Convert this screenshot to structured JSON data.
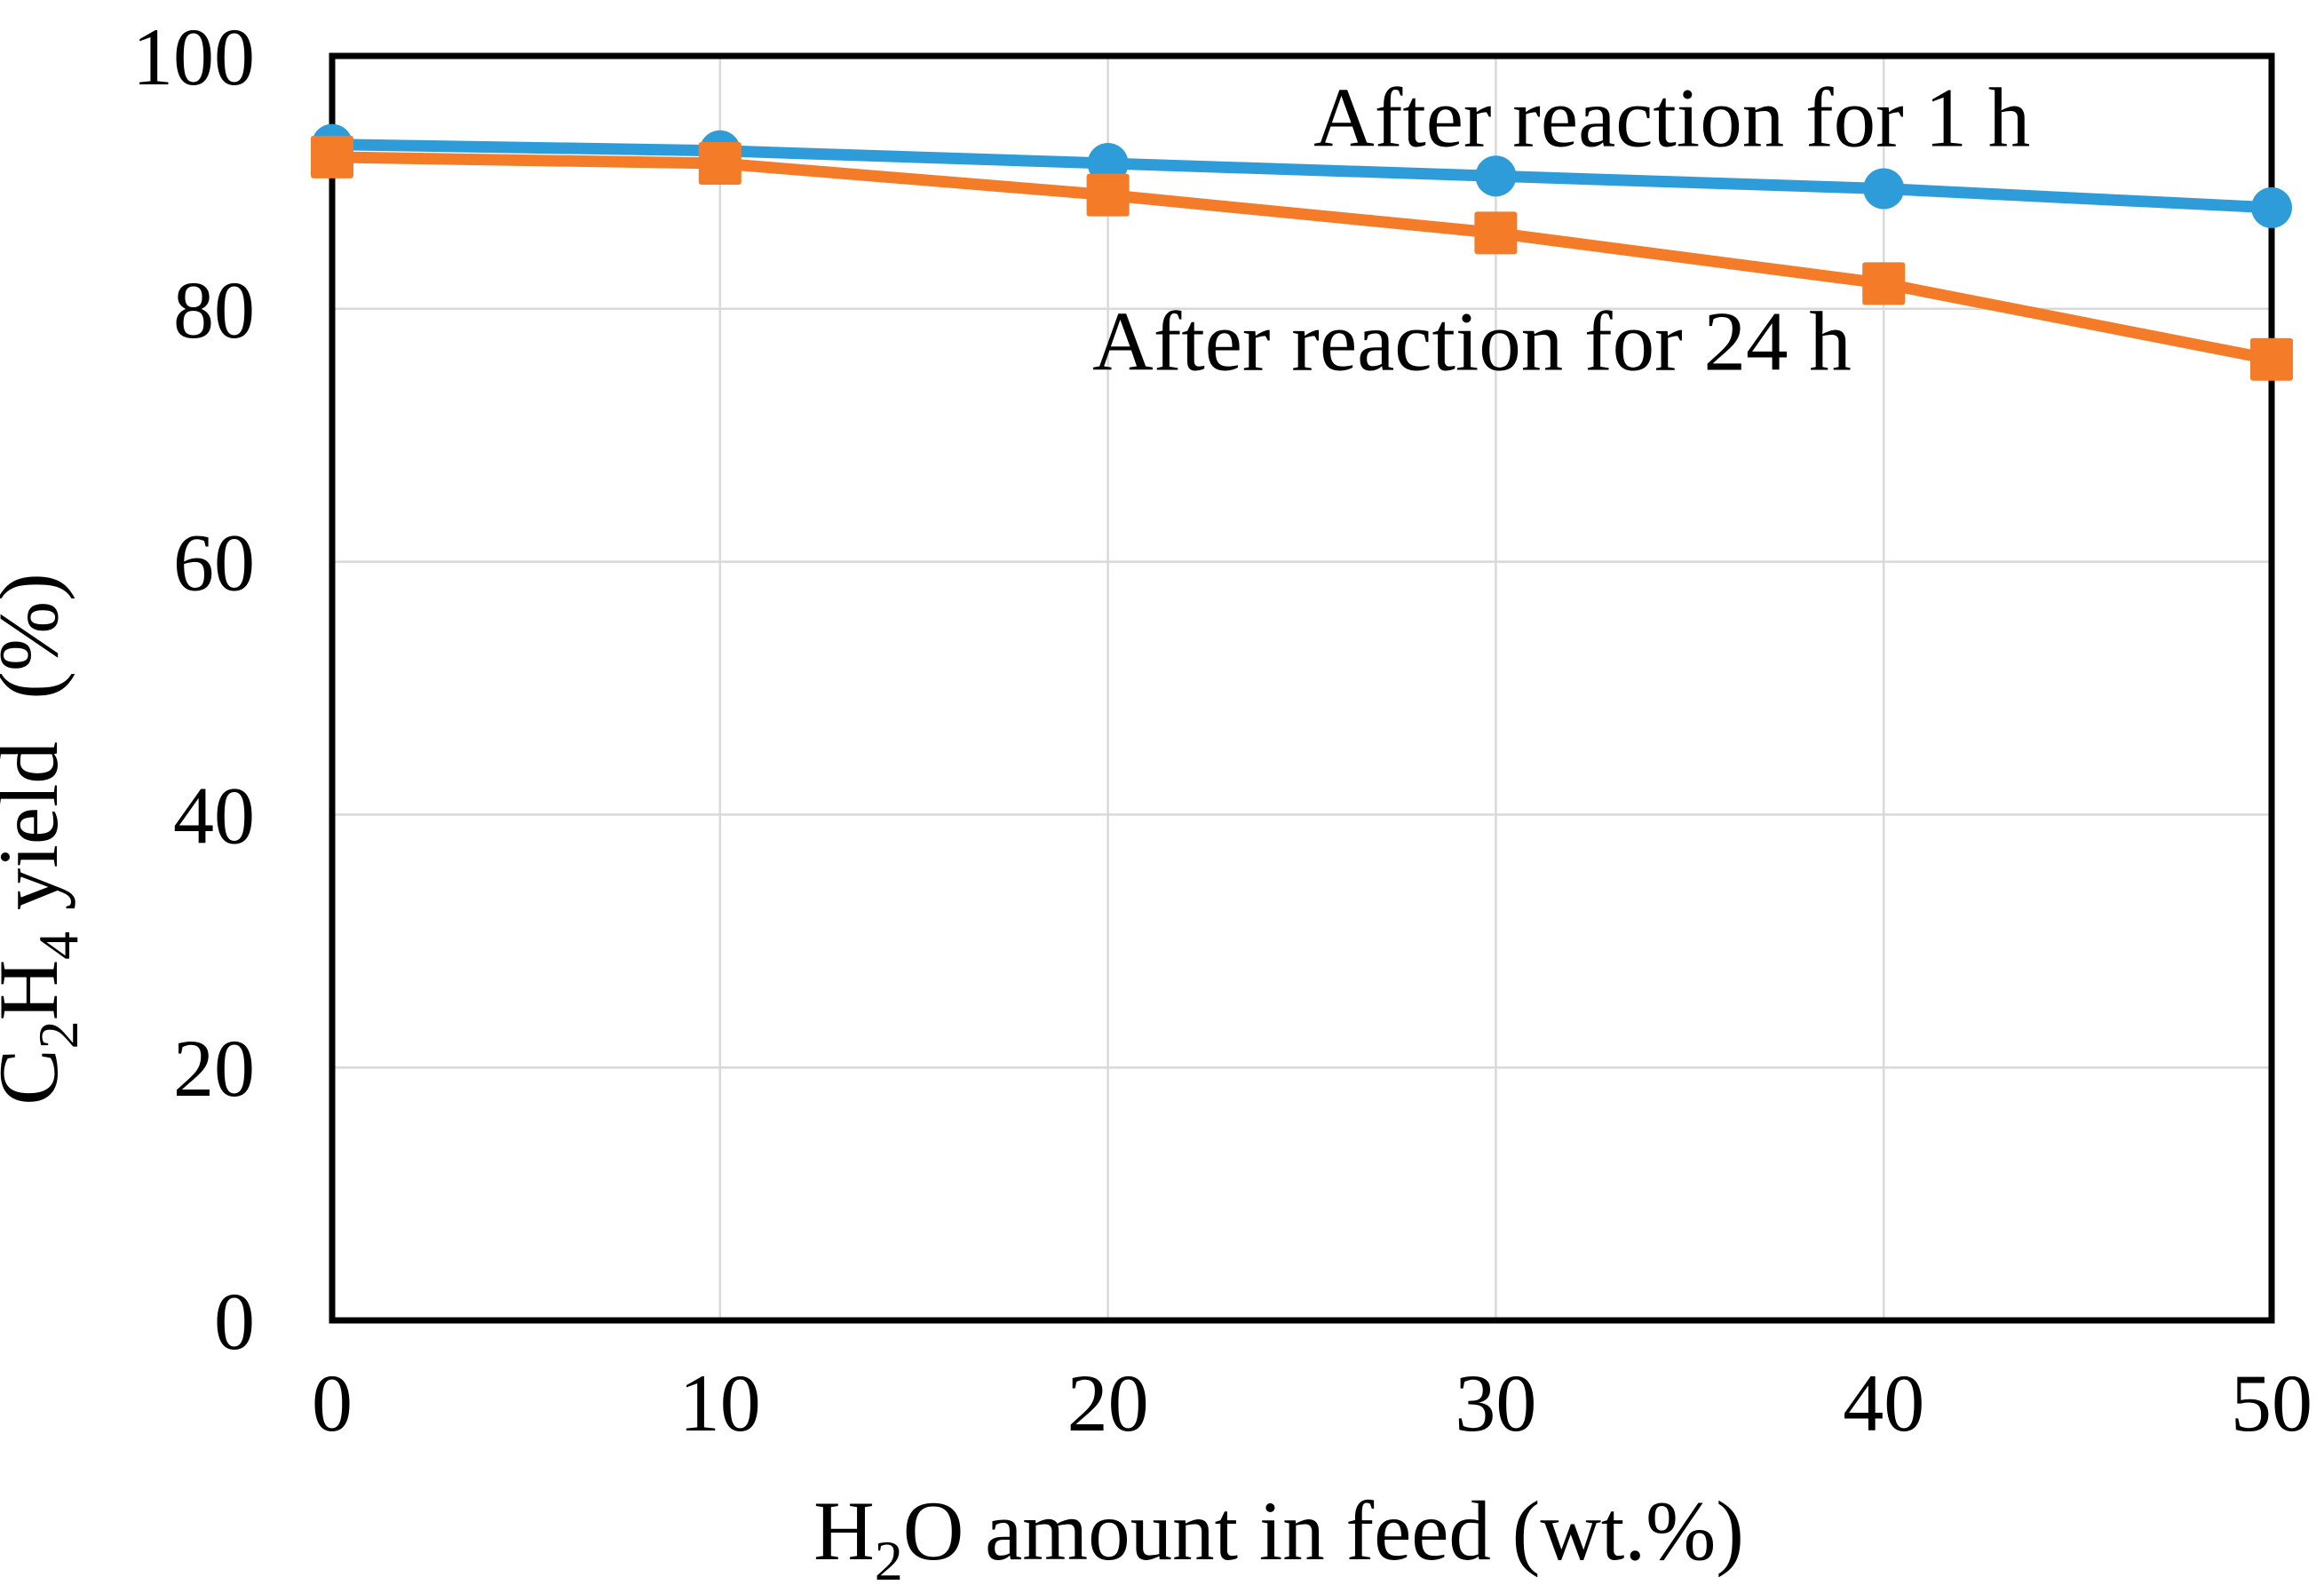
{
  "figure": {
    "background": "#FFFFFF"
  },
  "chart_data": {
    "type": "line",
    "title": "",
    "xlabel": "H₂O amount in feed (wt.%)",
    "ylabel": "C₂H₄ yield (%)",
    "xlabel_rich": [
      {
        "t": "H"
      },
      {
        "t": "2",
        "sub": true
      },
      {
        "t": "O amount in feed (wt.%)"
      }
    ],
    "ylabel_rich": [
      {
        "t": "C"
      },
      {
        "t": "2",
        "sub": true
      },
      {
        "t": "H"
      },
      {
        "t": "4",
        "sub": true
      },
      {
        "t": " yield  (%)"
      }
    ],
    "x": [
      0,
      10,
      20,
      30,
      40,
      50
    ],
    "x_ticks": [
      0,
      10,
      20,
      30,
      40,
      50
    ],
    "y_ticks": [
      0,
      20,
      40,
      60,
      80,
      100
    ],
    "xlim": [
      0,
      50
    ],
    "ylim": [
      0,
      100
    ],
    "grid": "both",
    "legend_position": "inline-annotations",
    "series": [
      {
        "id": "1h",
        "name": "After reaction for 1 h",
        "marker": "circle",
        "color": "#2E9CD8",
        "values": [
          93,
          92.5,
          91.5,
          90.5,
          89.5,
          88
        ]
      },
      {
        "id": "24h",
        "name": "After reaction for 24 h",
        "marker": "square",
        "color": "#F47C28",
        "values": [
          92,
          91.5,
          89,
          86,
          82,
          76
        ]
      }
    ],
    "annotations": [
      {
        "id": "1h",
        "text": "After reaction for 1 h",
        "x": 25.3,
        "y": 95.2
      },
      {
        "id": "24h",
        "text": "After reaction for 24 h",
        "x": 19.6,
        "y": 77.5
      }
    ],
    "colors": {
      "grid": "#D9D9D9",
      "axis": "#000000",
      "text": "#000000"
    }
  }
}
